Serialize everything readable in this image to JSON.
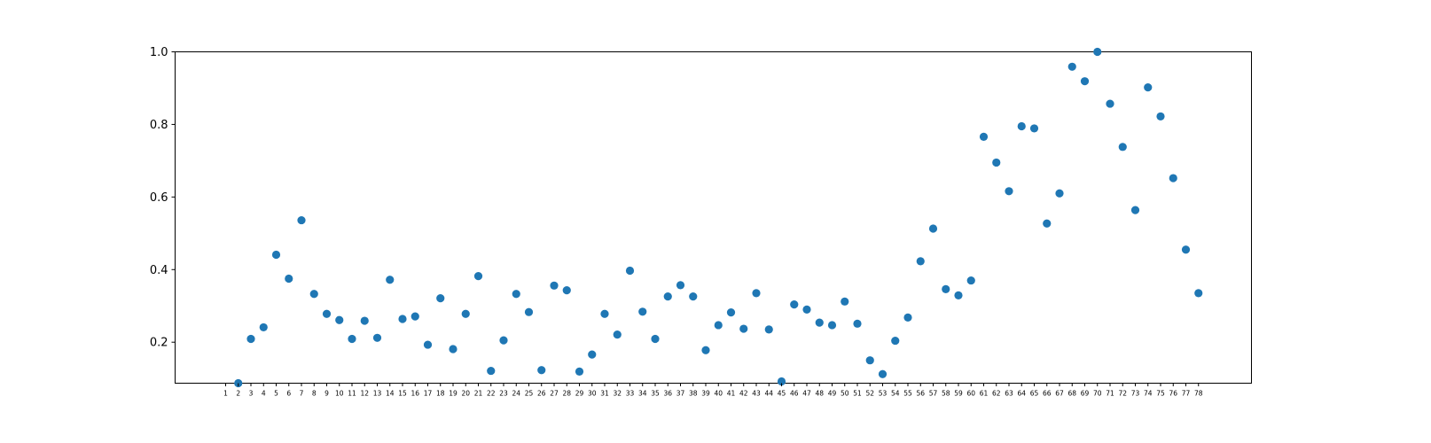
{
  "chart_data": {
    "type": "scatter",
    "title": "",
    "xlabel": "",
    "ylabel": "",
    "ylim": [
      0.087,
      1.0
    ],
    "yticks": [
      0.2,
      0.4,
      0.6,
      0.8,
      1.0
    ],
    "ytick_labels": [
      "0.2",
      "0.4",
      "0.6",
      "0.8",
      "1.0"
    ],
    "grid": false,
    "marker_color": "#1f77b4",
    "x": [
      "1",
      "2",
      "3",
      "4",
      "5",
      "6",
      "7",
      "8",
      "9",
      "10",
      "11",
      "12",
      "13",
      "14",
      "15",
      "16",
      "17",
      "18",
      "19",
      "20",
      "21",
      "22",
      "23",
      "24",
      "25",
      "26",
      "27",
      "28",
      "29",
      "30",
      "31",
      "32",
      "33",
      "34",
      "35",
      "36",
      "37",
      "38",
      "39",
      "40",
      "41",
      "42",
      "43",
      "44",
      "45",
      "46",
      "47",
      "48",
      "49",
      "50",
      "51",
      "52",
      "53",
      "54",
      "55",
      "56",
      "57",
      "58",
      "59",
      "60",
      "61",
      "62",
      "63",
      "64",
      "65",
      "66",
      "67",
      "68",
      "69",
      "70",
      "71",
      "72",
      "73",
      "74",
      "75",
      "76",
      "77",
      "78"
    ],
    "y": [
      null,
      0.087,
      0.209,
      0.241,
      0.441,
      0.375,
      0.536,
      0.333,
      0.278,
      0.261,
      0.209,
      0.259,
      0.212,
      0.372,
      0.264,
      0.271,
      0.193,
      0.321,
      0.181,
      0.278,
      0.382,
      0.121,
      0.205,
      0.333,
      0.283,
      0.123,
      0.356,
      0.343,
      0.119,
      0.166,
      0.278,
      0.221,
      0.397,
      0.284,
      0.209,
      0.326,
      0.357,
      0.326,
      0.178,
      0.247,
      0.282,
      0.237,
      0.335,
      0.235,
      0.092,
      0.304,
      0.29,
      0.254,
      0.247,
      0.312,
      0.251,
      0.15,
      0.112,
      0.204,
      0.268,
      0.423,
      0.513,
      0.346,
      0.329,
      0.37,
      0.766,
      0.695,
      0.616,
      0.795,
      0.789,
      0.527,
      0.61,
      0.959,
      0.919,
      1.0,
      0.857,
      0.738,
      0.564,
      0.902,
      0.822,
      0.652,
      0.455,
      0.335
    ]
  }
}
